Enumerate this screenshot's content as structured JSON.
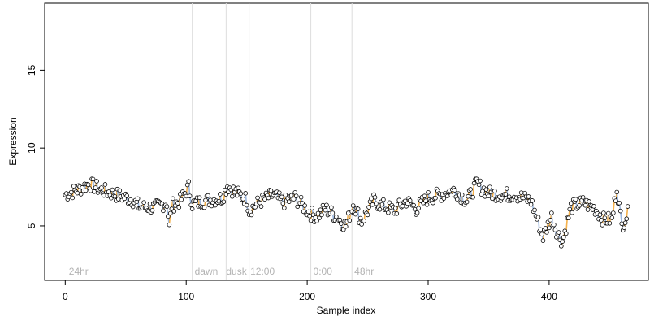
{
  "chart_data": {
    "type": "scatter",
    "title": "",
    "xlabel": "Sample index",
    "ylabel": "Expression",
    "xlim": [
      -17,
      482
    ],
    "ylim": [
      1.5,
      19.3
    ],
    "x_ticks": [
      0,
      100,
      200,
      300,
      400
    ],
    "y_ticks": [
      5,
      10,
      15
    ],
    "grid": false,
    "legend": "none",
    "phase_boundaries": [
      105,
      133,
      152,
      203,
      237
    ],
    "phase_labels": [
      {
        "label": "24hr",
        "x": 3
      },
      {
        "label": "dawn",
        "x": 107
      },
      {
        "label": "dusk",
        "x": 133
      },
      {
        "label": "12:00",
        "x": 153
      },
      {
        "label": "0:00",
        "x": 205
      },
      {
        "label": "48hr",
        "x": 239
      }
    ],
    "series": [
      {
        "trend": "rise",
        "segments": [
          [
            0,
            7.0
          ],
          [
            10,
            7.3
          ],
          [
            20,
            7.7
          ],
          [
            30,
            7.3
          ],
          [
            42,
            7.0
          ],
          [
            55,
            6.7
          ],
          [
            62,
            6.2
          ],
          [
            75,
            6.2
          ],
          [
            84,
            6.5
          ],
          [
            86,
            4.9
          ],
          [
            88,
            6.3
          ],
          [
            95,
            6.6
          ],
          [
            102,
            7.5
          ],
          [
            105,
            6.4
          ],
          [
            115,
            6.6
          ],
          [
            130,
            6.8
          ],
          [
            134,
            7.6
          ],
          [
            140,
            7.2
          ],
          [
            150,
            6.7
          ],
          [
            152,
            6.0
          ],
          [
            160,
            6.5
          ],
          [
            172,
            7.0
          ],
          [
            180,
            6.5
          ],
          [
            190,
            6.8
          ],
          [
            195,
            6.4
          ],
          [
            202,
            5.8
          ],
          [
            208,
            5.6
          ],
          [
            215,
            6.1
          ],
          [
            224,
            5.6
          ],
          [
            232,
            5.0
          ],
          [
            238,
            6.4
          ],
          [
            245,
            5.3
          ],
          [
            255,
            6.6
          ],
          [
            262,
            6.3
          ],
          [
            272,
            6.0
          ],
          [
            282,
            6.6
          ],
          [
            290,
            6.1
          ],
          [
            300,
            6.8
          ],
          [
            310,
            7.0
          ],
          [
            322,
            7.3
          ],
          [
            332,
            6.6
          ],
          [
            340,
            7.7
          ],
          [
            350,
            7.1
          ],
          [
            362,
            7.0
          ],
          [
            372,
            7.0
          ],
          [
            385,
            6.6
          ],
          [
            392,
            5.0
          ],
          [
            395,
            4.3
          ],
          [
            402,
            5.6
          ],
          [
            407,
            4.5
          ],
          [
            411,
            4.0
          ],
          [
            418,
            6.2
          ],
          [
            428,
            6.5
          ],
          [
            438,
            6.1
          ],
          [
            445,
            5.4
          ],
          [
            452,
            5.4
          ],
          [
            456,
            7.5
          ],
          [
            460,
            5.0
          ],
          [
            465,
            5.8
          ]
        ],
        "color": "#f5b14b"
      },
      {
        "trend": "fall",
        "color": "#9db8e0"
      }
    ],
    "points_summary": "approx. 460 samples, expression values mostly between 4 and 8, each drawn as an open circle with black outline and white fill, connected by a line colored orange when rising and blue when falling",
    "colors": {
      "rise": "#f5b14b",
      "fall": "#9db8e0",
      "point_fill": "#ffffff",
      "point_stroke": "#000000",
      "boundary": "#dddddd",
      "phase_label": "#b3b3b3"
    }
  }
}
